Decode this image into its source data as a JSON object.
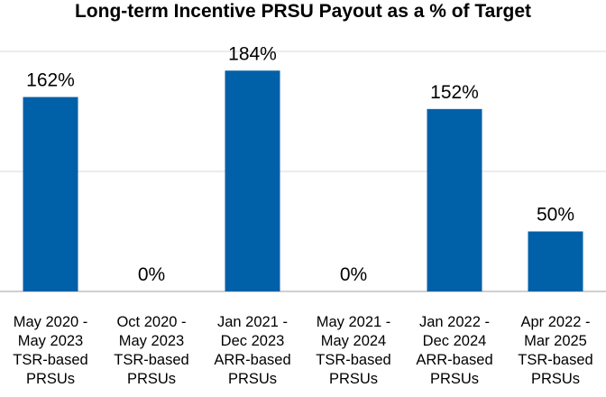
{
  "chart_data": {
    "type": "bar",
    "title": "Long-term Incentive PRSU Payout as a % of Target",
    "categories": [
      [
        "May 2020 -",
        "May 2023",
        "TSR-based",
        "PRSUs"
      ],
      [
        "Oct 2020 -",
        "May 2023",
        "TSR-based",
        "PRSUs"
      ],
      [
        "Jan 2021 -",
        "Dec 2023",
        "ARR-based",
        "PRSUs"
      ],
      [
        "May 2021 -",
        "May 2024",
        "TSR-based",
        "PRSUs"
      ],
      [
        "Jan 2022 -",
        "Dec 2024",
        "ARR-based",
        "PRSUs"
      ],
      [
        "Apr 2022 -",
        "Mar 2025",
        "TSR-based",
        "PRSUs"
      ]
    ],
    "values": [
      162,
      0,
      184,
      0,
      152,
      50
    ],
    "data_labels": [
      "162%",
      "0%",
      "184%",
      "0%",
      "152%",
      "50%"
    ],
    "ylim": [
      0,
      200
    ],
    "gridlines": [
      0,
      100,
      200
    ],
    "grid": true,
    "bar_color": "#0060a8",
    "grid_color": "#d9d9d9"
  }
}
